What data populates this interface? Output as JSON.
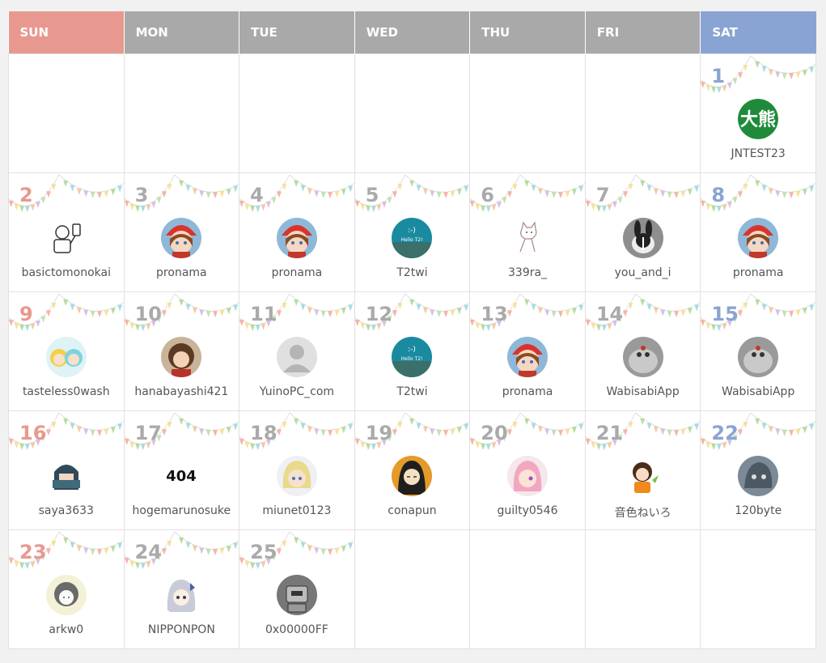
{
  "weekdays": [
    "SUN",
    "MON",
    "TUE",
    "WED",
    "THU",
    "FRI",
    "SAT"
  ],
  "weeks": [
    [
      null,
      null,
      null,
      null,
      null,
      null,
      {
        "day": "1",
        "user": "JNTEST23",
        "avatar": "green-kanji-logo"
      }
    ],
    [
      {
        "day": "2",
        "user": "basictomonokai",
        "avatar": "sketch-man"
      },
      {
        "day": "3",
        "user": "pronama",
        "avatar": "anime-girl-red-hat"
      },
      {
        "day": "4",
        "user": "pronama",
        "avatar": "anime-girl-red-hat"
      },
      {
        "day": "5",
        "user": "T2twi",
        "avatar": "teal-hello-t2"
      },
      {
        "day": "6",
        "user": "339ra_",
        "avatar": "sketch-cat"
      },
      {
        "day": "7",
        "user": "you_and_i",
        "avatar": "bunny-photo"
      },
      {
        "day": "8",
        "user": "pronama",
        "avatar": "anime-girl-red-hat"
      }
    ],
    [
      {
        "day": "9",
        "user": "tasteless0wash",
        "avatar": "twin-anime-girls"
      },
      {
        "day": "10",
        "user": "hanabayashi421",
        "avatar": "brown-hair-girl"
      },
      {
        "day": "11",
        "user": "YuinoPC_com",
        "avatar": "default-user"
      },
      {
        "day": "12",
        "user": "T2twi",
        "avatar": "teal-hello-t2"
      },
      {
        "day": "13",
        "user": "pronama",
        "avatar": "anime-girl-red-hat"
      },
      {
        "day": "14",
        "user": "WabisabiApp",
        "avatar": "hamster-photo"
      },
      {
        "day": "15",
        "user": "WabisabiApp",
        "avatar": "hamster-photo"
      }
    ],
    [
      {
        "day": "16",
        "user": "saya3633",
        "avatar": "dark-anime-girl"
      },
      {
        "day": "17",
        "user": "hogemarunosuke",
        "avatar": "404-not-found"
      },
      {
        "day": "18",
        "user": "miunet0123",
        "avatar": "blonde-anime-girl"
      },
      {
        "day": "19",
        "user": "conapun",
        "avatar": "black-hair-girl"
      },
      {
        "day": "20",
        "user": "guilty0546",
        "avatar": "pink-hair-girl"
      },
      {
        "day": "21",
        "user": "音色ねいろ",
        "avatar": "chibi-orange"
      },
      {
        "day": "22",
        "user": "120byte",
        "avatar": "gray-creature"
      }
    ],
    [
      {
        "day": "23",
        "user": "arkw0",
        "avatar": "sketch-girl"
      },
      {
        "day": "24",
        "user": "NIPPONPON",
        "avatar": "silver-hair-girl"
      },
      {
        "day": "25",
        "user": "0x00000FF",
        "avatar": "robot-sketch"
      },
      null,
      null,
      null,
      null
    ]
  ],
  "colors": {
    "sun": "#e8998f",
    "sat": "#89a4d2",
    "weekday": "#a9a9a9",
    "daynum": "#aaaaaa"
  },
  "avatar_404_text": "404"
}
